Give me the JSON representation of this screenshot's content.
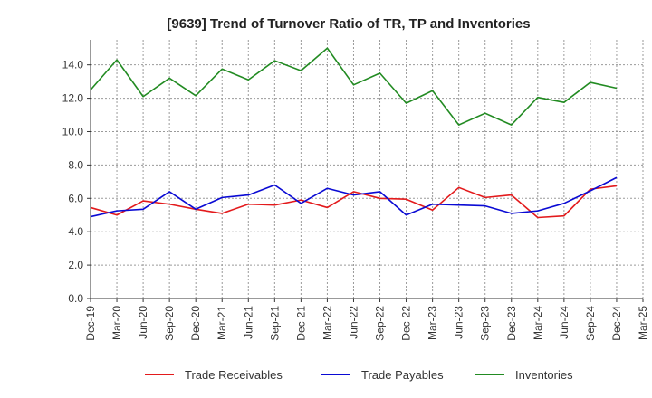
{
  "chart_data": {
    "type": "line",
    "title": "[9639]  Trend of Turnover Ratio of TR, TP and Inventories",
    "xlabel": "",
    "ylabel": "",
    "ylim": [
      0,
      15.5
    ],
    "yticks": [
      0.0,
      2.0,
      4.0,
      6.0,
      8.0,
      10.0,
      12.0,
      14.0
    ],
    "ytick_labels": [
      "0.0",
      "2.0",
      "4.0",
      "6.0",
      "8.0",
      "10.0",
      "12.0",
      "14.0"
    ],
    "tick_labels": [
      "Dec-19",
      "Mar-20",
      "Jun-20",
      "Sep-20",
      "Dec-20",
      "Mar-21",
      "Jun-21",
      "Sep-21",
      "Dec-21",
      "Mar-22",
      "Jun-22",
      "Sep-22",
      "Dec-22",
      "Mar-23",
      "Jun-23",
      "Sep-23",
      "Dec-23",
      "Mar-24",
      "Jun-24",
      "Sep-24",
      "Dec-24",
      "Mar-25"
    ],
    "categories": [
      "Dec-19",
      "Mar-20",
      "Jun-20",
      "Sep-20",
      "Dec-20",
      "Mar-21",
      "Jun-21",
      "Sep-21",
      "Dec-21",
      "Mar-22",
      "Jun-22",
      "Sep-22",
      "Dec-22",
      "Mar-23",
      "Jun-23",
      "Sep-23",
      "Dec-23",
      "Mar-24",
      "Jun-24",
      "Sep-24",
      "Dec-24"
    ],
    "grid": true,
    "grid_style": "dotted",
    "legend_position": "bottom",
    "series": [
      {
        "name": "Trade Receivables",
        "color": "#e31a1c",
        "values": [
          5.45,
          5.0,
          5.85,
          5.65,
          5.35,
          5.1,
          5.65,
          5.6,
          5.9,
          5.45,
          6.4,
          6.0,
          5.95,
          5.3,
          6.65,
          6.05,
          6.2,
          4.85,
          4.95,
          6.55,
          6.75
        ]
      },
      {
        "name": "Trade Payables",
        "color": "#0a0ad4",
        "values": [
          4.9,
          5.25,
          5.35,
          6.4,
          5.35,
          6.05,
          6.2,
          6.8,
          5.7,
          6.6,
          6.2,
          6.4,
          5.0,
          5.65,
          5.6,
          5.55,
          5.1,
          5.25,
          5.7,
          6.45,
          7.25
        ]
      },
      {
        "name": "Inventories",
        "color": "#228b22",
        "values": [
          12.5,
          14.3,
          12.1,
          13.2,
          12.15,
          13.75,
          13.1,
          14.25,
          13.65,
          15.0,
          12.8,
          13.5,
          11.7,
          12.45,
          10.4,
          11.1,
          10.4,
          12.05,
          11.75,
          12.95,
          12.6
        ]
      }
    ]
  }
}
